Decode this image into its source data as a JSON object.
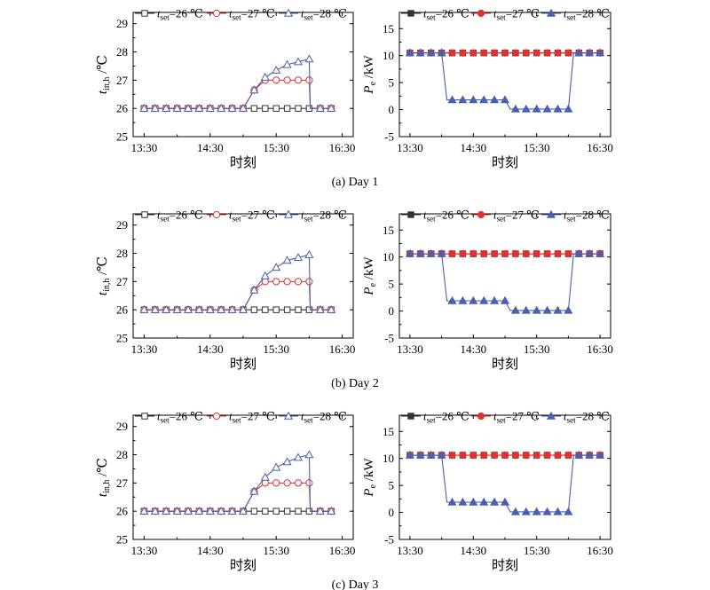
{
  "x_axis": {
    "label": "时刻",
    "ticks": [
      "13:30",
      "14:30",
      "15:30",
      "16:30"
    ],
    "tick_minutes": [
      0,
      60,
      120,
      180
    ],
    "range_minutes": [
      -10,
      190
    ]
  },
  "left_panel": {
    "ylabel_main": "t",
    "ylabel_sub": "in,h",
    "ylabel_unit": " /℃",
    "yticks": [
      25,
      26,
      27,
      28,
      29
    ],
    "ylim": [
      25,
      29.4
    ]
  },
  "right_panel": {
    "ylabel_main": "P",
    "ylabel_sub": "e",
    "ylabel_unit": " /kW",
    "yticks": [
      -5,
      0,
      5,
      10,
      15
    ],
    "ylim": [
      -5,
      18
    ]
  },
  "legend_left": [
    {
      "prefix": "t",
      "sub": "set",
      "text": "=26 ℃"
    },
    {
      "prefix": "t",
      "sub": "set",
      "text": "=27 ℃"
    },
    {
      "prefix": "t",
      "sub": "set",
      "text": "=28 ℃"
    }
  ],
  "legend_right": [
    {
      "prefix": "t",
      "sub": "set",
      "text": "=26 ℃"
    },
    {
      "prefix": "t",
      "sub": "set",
      "text": "=27 ℃"
    },
    {
      "prefix": "t",
      "sub": "set",
      "text": "=28 ℃"
    }
  ],
  "colors": {
    "s26": "#333333",
    "s27": "#e03030",
    "s28": "#4a5fae",
    "overlap": "#7a3c8c",
    "axis": "#000000"
  },
  "chart_data": [
    {
      "type": "line",
      "caption": "(a) Day 1",
      "left": {
        "x": [
          0,
          10,
          20,
          30,
          40,
          50,
          60,
          70,
          80,
          90,
          100,
          110,
          120,
          130,
          140,
          150,
          151,
          160,
          170
        ],
        "series": [
          {
            "values": [
              26,
              26,
              26,
              26,
              26,
              26,
              26,
              26,
              26,
              26,
              26,
              26,
              26,
              26,
              26,
              26,
              26,
              26,
              26
            ]
          },
          {
            "values": [
              26,
              26,
              26,
              26,
              26,
              26,
              26,
              26,
              26,
              26,
              26.65,
              27,
              27,
              27,
              27,
              27,
              26,
              26,
              26
            ]
          },
          {
            "values": [
              26,
              26,
              26,
              26,
              26,
              26,
              26,
              26,
              26,
              26,
              26.65,
              27.1,
              27.35,
              27.55,
              27.65,
              27.75,
              26,
              26,
              26
            ]
          }
        ]
      },
      "right": {
        "x": [
          0,
          10,
          20,
          30,
          35,
          40,
          50,
          60,
          70,
          80,
          90,
          95,
          100,
          110,
          120,
          125,
          130,
          140,
          150,
          155,
          160,
          170,
          180
        ],
        "series": [
          {
            "values": [
              10.5,
              10.5,
              10.5,
              10.5,
              10.5,
              10.5,
              10.5,
              10.5,
              10.5,
              10.5,
              10.5,
              10.5,
              10.5,
              10.5,
              10.5,
              10.5,
              10.5,
              10.5,
              10.5,
              10.5,
              10.5,
              10.5,
              10.5
            ]
          },
          {
            "values": [
              10.5,
              10.5,
              10.5,
              10.5,
              10.5,
              10.5,
              10.5,
              10.5,
              10.5,
              10.5,
              10.5,
              10.5,
              10.5,
              10.5,
              10.5,
              10.5,
              10.5,
              10.5,
              10.5,
              10.5,
              10.5,
              10.5,
              10.5
            ]
          },
          {
            "values": [
              10.5,
              10.5,
              10.5,
              10.5,
              1.8,
              1.8,
              1.8,
              1.8,
              1.8,
              1.8,
              1.8,
              0.1,
              0.1,
              0.1,
              0.1,
              0.1,
              0.1,
              0.1,
              0.1,
              10.5,
              10.5,
              10.5,
              10.5
            ]
          }
        ]
      }
    },
    {
      "type": "line",
      "caption": "(b) Day 2",
      "left": {
        "x": [
          0,
          10,
          20,
          30,
          40,
          50,
          60,
          70,
          80,
          90,
          100,
          110,
          120,
          130,
          140,
          150,
          151,
          160,
          170
        ],
        "series": [
          {
            "values": [
              26,
              26,
              26,
              26,
              26,
              26,
              26,
              26,
              26,
              26,
              26,
              26,
              26,
              26,
              26,
              26,
              26,
              26,
              26
            ]
          },
          {
            "values": [
              26,
              26,
              26,
              26,
              26,
              26,
              26,
              26,
              26,
              26,
              26.7,
              27,
              27,
              27,
              27,
              27,
              26,
              26,
              26
            ]
          },
          {
            "values": [
              26,
              26,
              26,
              26,
              26,
              26,
              26,
              26,
              26,
              26,
              26.7,
              27.2,
              27.5,
              27.75,
              27.85,
              27.95,
              26,
              26,
              26
            ]
          }
        ]
      },
      "right": {
        "x": [
          0,
          10,
          20,
          30,
          35,
          40,
          50,
          60,
          70,
          80,
          90,
          95,
          100,
          110,
          120,
          125,
          130,
          140,
          150,
          155,
          160,
          170,
          180
        ],
        "series": [
          {
            "values": [
              10.6,
              10.6,
              10.6,
              10.6,
              10.6,
              10.6,
              10.6,
              10.6,
              10.6,
              10.6,
              10.6,
              10.6,
              10.6,
              10.6,
              10.6,
              10.6,
              10.6,
              10.6,
              10.6,
              10.6,
              10.6,
              10.6,
              10.6
            ]
          },
          {
            "values": [
              10.6,
              10.6,
              10.6,
              10.6,
              10.6,
              10.6,
              10.6,
              10.6,
              10.6,
              10.6,
              10.6,
              10.6,
              10.6,
              10.6,
              10.6,
              10.6,
              10.6,
              10.6,
              10.6,
              10.6,
              10.6,
              10.6,
              10.6
            ]
          },
          {
            "values": [
              10.6,
              10.6,
              10.6,
              10.6,
              1.9,
              1.9,
              1.9,
              1.9,
              1.9,
              1.9,
              1.9,
              0.1,
              0.1,
              0.1,
              0.1,
              0.1,
              0.1,
              0.1,
              0.1,
              10.6,
              10.6,
              10.6,
              10.6
            ]
          }
        ]
      }
    },
    {
      "type": "line",
      "caption": "(c) Day 3",
      "left": {
        "x": [
          0,
          10,
          20,
          30,
          40,
          50,
          60,
          70,
          80,
          90,
          100,
          110,
          120,
          130,
          140,
          150,
          151,
          160,
          170
        ],
        "series": [
          {
            "values": [
              26,
              26,
              26,
              26,
              26,
              26,
              26,
              26,
              26,
              26,
              26,
              26,
              26,
              26,
              26,
              26,
              26,
              26,
              26
            ]
          },
          {
            "values": [
              26,
              26,
              26,
              26,
              26,
              26,
              26,
              26,
              26,
              26,
              26.7,
              27,
              27,
              27,
              27,
              27,
              26,
              26,
              26
            ]
          },
          {
            "values": [
              26,
              26,
              26,
              26,
              26,
              26,
              26,
              26,
              26,
              26,
              26.7,
              27.2,
              27.55,
              27.75,
              27.9,
              28.0,
              26,
              26,
              26
            ]
          }
        ]
      },
      "right": {
        "x": [
          0,
          10,
          20,
          30,
          35,
          40,
          50,
          60,
          70,
          80,
          90,
          95,
          100,
          110,
          120,
          125,
          130,
          140,
          150,
          155,
          160,
          170,
          180
        ],
        "series": [
          {
            "values": [
              10.6,
              10.6,
              10.6,
              10.6,
              10.6,
              10.6,
              10.6,
              10.6,
              10.6,
              10.6,
              10.6,
              10.6,
              10.6,
              10.6,
              10.6,
              10.6,
              10.6,
              10.6,
              10.6,
              10.6,
              10.6,
              10.6,
              10.6
            ]
          },
          {
            "values": [
              10.6,
              10.6,
              10.6,
              10.6,
              10.6,
              10.6,
              10.6,
              10.6,
              10.6,
              10.6,
              10.6,
              10.6,
              10.6,
              10.6,
              10.6,
              10.6,
              10.6,
              10.6,
              10.6,
              10.6,
              10.6,
              10.6,
              10.6
            ]
          },
          {
            "values": [
              10.6,
              10.6,
              10.6,
              10.6,
              1.9,
              1.9,
              1.9,
              1.9,
              1.9,
              1.9,
              1.9,
              0.1,
              0.1,
              0.1,
              0.1,
              0.1,
              0.1,
              0.1,
              0.1,
              10.6,
              10.6,
              10.6,
              10.6
            ]
          }
        ]
      }
    }
  ]
}
